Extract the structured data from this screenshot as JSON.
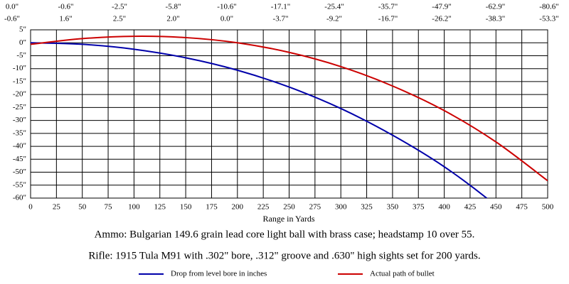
{
  "chart_data": {
    "type": "line",
    "x": [
      0,
      50,
      100,
      150,
      200,
      250,
      300,
      350,
      400,
      450,
      500
    ],
    "series": [
      {
        "name": "Drop from level bore in inches",
        "color": "#0000aa",
        "values": [
          0.0,
          -0.6,
          -2.5,
          -5.8,
          -10.6,
          -17.1,
          -25.4,
          -35.7,
          -47.9,
          -62.9,
          -80.6
        ],
        "value_labels": [
          "0.0\"",
          "-0.6\"",
          "-2.5\"",
          "-5.8\"",
          "-10.6\"",
          "-17.1\"",
          "-25.4\"",
          "-35.7\"",
          "-47.9\"",
          "-62.9\"",
          "-80.6\""
        ]
      },
      {
        "name": "Actual path of bullet",
        "color": "#cc0000",
        "values": [
          -0.6,
          1.6,
          2.5,
          2.0,
          0.0,
          -3.7,
          -9.2,
          -16.7,
          -26.2,
          -38.3,
          -53.3
        ],
        "value_labels": [
          "-0.6\"",
          "1.6\"",
          "2.5\"",
          "2.0\"",
          "0.0\"",
          "-3.7\"",
          "-9.2\"",
          "-16.7\"",
          "-26.2\"",
          "-38.3\"",
          "-53.3\""
        ]
      }
    ],
    "x_label": "Range in Yards",
    "xlim": [
      0,
      500
    ],
    "xticks": [
      0,
      25,
      50,
      75,
      100,
      125,
      150,
      175,
      200,
      225,
      250,
      275,
      300,
      325,
      350,
      375,
      400,
      425,
      450,
      475,
      500
    ],
    "ylim": [
      -60,
      5
    ],
    "yticks": [
      {
        "value": 5,
        "label": "5\""
      },
      {
        "value": 0,
        "label": "0\""
      },
      {
        "value": -5,
        "label": "-5\""
      },
      {
        "value": -10,
        "label": "-10\""
      },
      {
        "value": -15,
        "label": "-15\""
      },
      {
        "value": -20,
        "label": "-20\""
      },
      {
        "value": -25,
        "label": "-25\""
      },
      {
        "value": -30,
        "label": "-30\""
      },
      {
        "value": -35,
        "label": "-35\""
      },
      {
        "value": -40,
        "label": "-40\""
      },
      {
        "value": -45,
        "label": "-45\""
      },
      {
        "value": -50,
        "label": "-50\""
      },
      {
        "value": -55,
        "label": "-55\""
      },
      {
        "value": -60,
        "label": "-60\""
      }
    ],
    "grid": true,
    "notes": [
      "Ammo:  Bulgarian 149.6 grain lead core light ball with brass case; headstamp 10 over 55.",
      "Rifle:  1915 Tula M91 with .302\" bore, .312\" groove and .630\" high sights set for 200 yards."
    ]
  }
}
